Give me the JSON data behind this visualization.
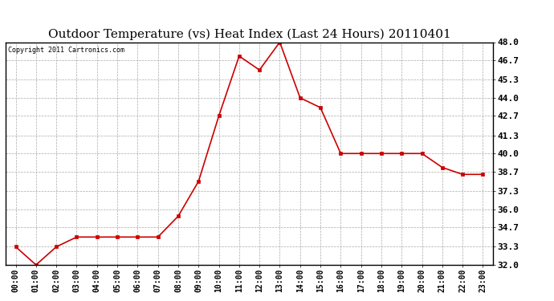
{
  "title": "Outdoor Temperature (vs) Heat Index (Last 24 Hours) 20110401",
  "copyright_text": "Copyright 2011 Cartronics.com",
  "x_labels": [
    "00:00",
    "01:00",
    "02:00",
    "03:00",
    "04:00",
    "05:00",
    "06:00",
    "07:00",
    "08:00",
    "09:00",
    "10:00",
    "11:00",
    "12:00",
    "13:00",
    "14:00",
    "15:00",
    "16:00",
    "17:00",
    "18:00",
    "19:00",
    "20:00",
    "21:00",
    "22:00",
    "23:00"
  ],
  "y_values": [
    33.3,
    32.0,
    33.3,
    34.0,
    34.0,
    34.0,
    34.0,
    34.0,
    35.5,
    38.0,
    42.7,
    47.0,
    46.0,
    48.0,
    44.0,
    43.3,
    40.0,
    40.0,
    40.0,
    40.0,
    40.0,
    39.0,
    38.5,
    38.5
  ],
  "line_color": "#cc0000",
  "marker": "s",
  "marker_size": 2.5,
  "marker_color": "#cc0000",
  "ylim": [
    32.0,
    48.0
  ],
  "ytick_values": [
    32.0,
    33.3,
    34.7,
    36.0,
    37.3,
    38.7,
    40.0,
    41.3,
    42.7,
    44.0,
    45.3,
    46.7,
    48.0
  ],
  "grid_color": "#aaaaaa",
  "bg_color": "#ffffff",
  "title_fontsize": 11,
  "copyright_fontsize": 6,
  "axis_label_fontsize": 7,
  "ytick_fontsize": 8,
  "line_width": 1.2
}
